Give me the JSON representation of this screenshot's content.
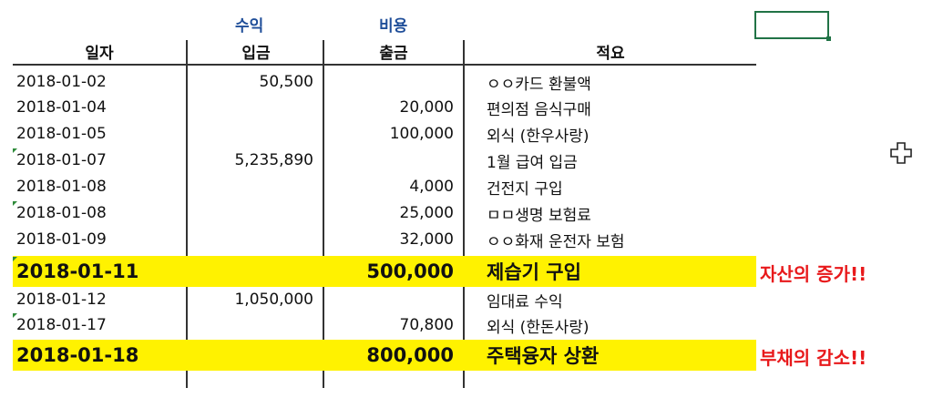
{
  "categories": {
    "income": "수익",
    "expense": "비용"
  },
  "headers": {
    "date": "일자",
    "deposit": "입금",
    "withdrawal": "출금",
    "description": "적요"
  },
  "rows": [
    {
      "date": "2018-01-02",
      "deposit": "50,500",
      "withdrawal": "",
      "description": "ㅇㅇ카드 환불액"
    },
    {
      "date": "2018-01-04",
      "deposit": "",
      "withdrawal": "20,000",
      "description": "편의점 음식구매"
    },
    {
      "date": "2018-01-05",
      "deposit": "",
      "withdrawal": "100,000",
      "description": "외식 (한우사랑)"
    },
    {
      "date": "2018-01-07",
      "deposit": "5,235,890",
      "withdrawal": "",
      "description": "1월 급여 입금"
    },
    {
      "date": "2018-01-08",
      "deposit": "",
      "withdrawal": "4,000",
      "description": "건전지 구입"
    },
    {
      "date": "2018-01-08",
      "deposit": "",
      "withdrawal": "25,000",
      "description": "ㅁㅁ생명 보험료"
    },
    {
      "date": "2018-01-09",
      "deposit": "",
      "withdrawal": "32,000",
      "description": "ㅇㅇ화재 운전자 보험"
    },
    {
      "date": "2018-01-11",
      "deposit": "",
      "withdrawal": "500,000",
      "description": "제습기 구입",
      "note": "자산의 증가!!"
    },
    {
      "date": "2018-01-12",
      "deposit": "1,050,000",
      "withdrawal": "",
      "description": "임대료 수익"
    },
    {
      "date": "2018-01-17",
      "deposit": "",
      "withdrawal": "70,800",
      "description": "외식 (한돈사랑)"
    },
    {
      "date": "2018-01-18",
      "deposit": "",
      "withdrawal": "800,000",
      "description": "주택융자 상환",
      "note": "부채의 감소!!"
    }
  ],
  "colors": {
    "category_text": "#1f4e99",
    "highlight": "#fff200",
    "note_text": "#e8191b",
    "selection_border": "#217346"
  },
  "icons": {
    "cursor": "cell-select-cross-icon",
    "error_marker": "green-triangle-icon"
  }
}
